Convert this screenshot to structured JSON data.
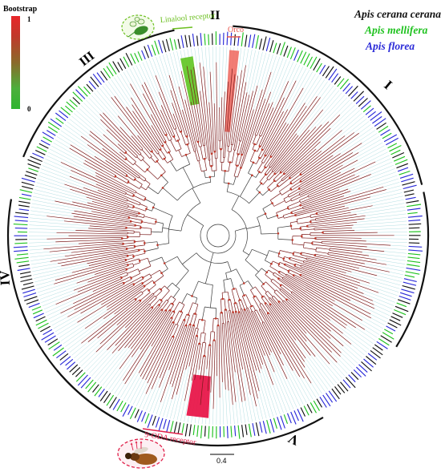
{
  "legend": {
    "title": "Bootstrap",
    "max_label": "1",
    "min_label": "0",
    "colors": {
      "high": "#e8262a",
      "low": "#2fb52f"
    }
  },
  "species": [
    {
      "name": "Apis cerana cerana",
      "color": "#111111"
    },
    {
      "name": "Apis mellifera",
      "color": "#1fc21f"
    },
    {
      "name": "Apis florea",
      "color": "#2a2ad8"
    }
  ],
  "clades": [
    {
      "label": "I"
    },
    {
      "label": "II"
    },
    {
      "label": "III"
    },
    {
      "label": "IV"
    },
    {
      "label": "V"
    }
  ],
  "annotations": [
    {
      "label": "Linalool receptor",
      "color": "#6bbf1f"
    },
    {
      "label": "Orco",
      "color": "#e8574e"
    },
    {
      "label": "9-ODA receptor",
      "color": "#e0204a"
    }
  ],
  "scale_bar": {
    "label": "0.4"
  },
  "colors": {
    "branch": "#7a1a1a",
    "branch_dark": "#3a3a3a",
    "leaf_guide": "#8fd0d6",
    "node": "#c0392b"
  },
  "icons": [
    "flower-icon",
    "honeybee-icon"
  ]
}
